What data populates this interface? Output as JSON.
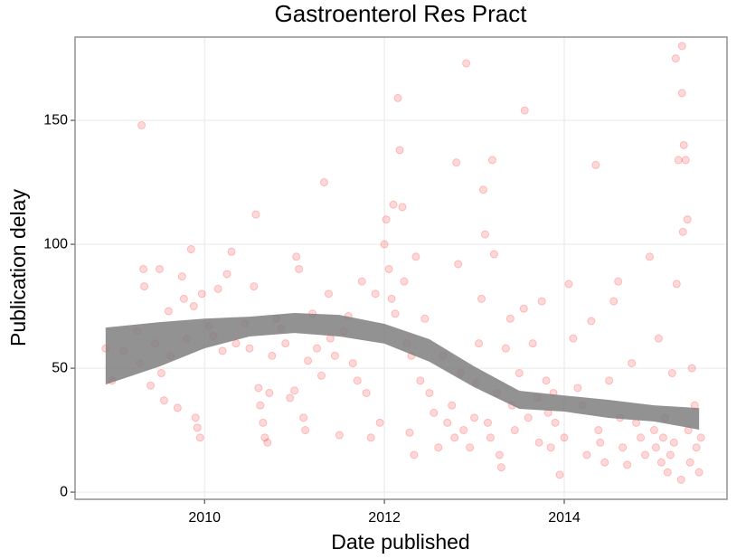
{
  "chart_data": {
    "type": "scatter",
    "title": "Gastroenterol Res Pract",
    "x_label": "Date published",
    "y_label": "Publication delay",
    "xlim": [
      2008.56,
      2015.81
    ],
    "ylim": [
      -2.9,
      183.6
    ],
    "xticks": [
      2010,
      2012,
      2014
    ],
    "yticks": [
      0,
      50,
      100,
      150
    ],
    "grid": true,
    "point_color": "#ff0000",
    "smooth_color": "#7f7f7f",
    "points": {
      "x": [
        2008.9,
        2008.97,
        2009.1,
        2009.25,
        2009.28,
        2009.3,
        2009.32,
        2009.33,
        2009.4,
        2009.45,
        2009.5,
        2009.52,
        2009.55,
        2009.6,
        2009.62,
        2009.7,
        2009.75,
        2009.77,
        2009.8,
        2009.85,
        2009.88,
        2009.9,
        2009.92,
        2009.95,
        2009.97,
        2010.05,
        2010.1,
        2010.15,
        2010.2,
        2010.25,
        2010.3,
        2010.35,
        2010.45,
        2010.5,
        2010.55,
        2010.57,
        2010.6,
        2010.62,
        2010.65,
        2010.67,
        2010.7,
        2010.72,
        2010.75,
        2010.8,
        2010.85,
        2010.9,
        2010.95,
        2011.0,
        2011.02,
        2011.05,
        2011.1,
        2011.12,
        2011.15,
        2011.2,
        2011.25,
        2011.3,
        2011.33,
        2011.38,
        2011.4,
        2011.45,
        2011.5,
        2011.55,
        2011.6,
        2011.65,
        2011.7,
        2011.75,
        2011.8,
        2011.85,
        2011.9,
        2011.95,
        2012.0,
        2012.02,
        2012.05,
        2012.08,
        2012.1,
        2012.12,
        2012.15,
        2012.17,
        2012.2,
        2012.22,
        2012.25,
        2012.28,
        2012.3,
        2012.33,
        2012.35,
        2012.4,
        2012.45,
        2012.5,
        2012.55,
        2012.6,
        2012.65,
        2012.7,
        2012.75,
        2012.78,
        2012.8,
        2012.82,
        2012.85,
        2012.88,
        2012.91,
        2012.95,
        2013.0,
        2013.02,
        2013.05,
        2013.08,
        2013.1,
        2013.12,
        2013.15,
        2013.18,
        2013.2,
        2013.22,
        2013.25,
        2013.28,
        2013.3,
        2013.35,
        2013.4,
        2013.42,
        2013.45,
        2013.5,
        2013.55,
        2013.56,
        2013.6,
        2013.65,
        2013.7,
        2013.72,
        2013.75,
        2013.8,
        2013.82,
        2013.85,
        2013.88,
        2013.9,
        2013.95,
        2014.0,
        2014.05,
        2014.1,
        2014.15,
        2014.2,
        2014.25,
        2014.3,
        2014.35,
        2014.38,
        2014.4,
        2014.45,
        2014.5,
        2014.55,
        2014.6,
        2014.62,
        2014.65,
        2014.7,
        2014.75,
        2014.8,
        2014.85,
        2014.9,
        2014.95,
        2015.0,
        2015.02,
        2015.05,
        2015.08,
        2015.1,
        2015.12,
        2015.15,
        2015.18,
        2015.2,
        2015.22,
        2015.24,
        2015.25,
        2015.27,
        2015.3,
        2015.31,
        2015.31,
        2015.32,
        2015.33,
        2015.35,
        2015.37,
        2015.38,
        2015.4,
        2015.42,
        2015.45,
        2015.47,
        2015.5,
        2015.52
      ],
      "y": [
        58,
        45,
        57,
        65,
        52,
        148,
        90,
        83,
        43,
        60,
        90,
        48,
        37,
        73,
        55,
        34,
        87,
        78,
        62,
        98,
        75,
        30,
        26,
        22,
        80,
        67,
        63,
        82,
        57,
        88,
        97,
        60,
        68,
        58,
        83,
        112,
        42,
        35,
        28,
        22,
        20,
        40,
        55,
        70,
        66,
        60,
        38,
        41,
        95,
        90,
        30,
        25,
        53,
        72,
        58,
        47,
        125,
        80,
        62,
        55,
        23,
        65,
        71,
        52,
        45,
        85,
        40,
        22,
        80,
        28,
        100,
        110,
        90,
        78,
        116,
        72,
        159,
        138,
        115,
        85,
        60,
        24,
        55,
        15,
        95,
        45,
        70,
        40,
        32,
        18,
        55,
        28,
        35,
        22,
        133,
        92,
        48,
        25,
        173,
        18,
        30,
        44,
        60,
        78,
        122,
        104,
        28,
        22,
        134,
        96,
        40,
        15,
        10,
        58,
        70,
        35,
        25,
        48,
        74,
        154,
        30,
        60,
        38,
        20,
        77,
        45,
        32,
        18,
        40,
        28,
        7,
        22,
        84,
        62,
        42,
        35,
        15,
        69,
        132,
        25,
        20,
        12,
        45,
        77,
        85,
        30,
        18,
        11,
        52,
        28,
        22,
        15,
        95,
        25,
        18,
        62,
        12,
        22,
        30,
        8,
        15,
        48,
        20,
        175,
        84,
        134,
        5,
        161,
        180,
        105,
        140,
        134,
        110,
        25,
        12,
        50,
        35,
        18,
        8,
        22
      ]
    },
    "smooth": {
      "x": [
        2008.9,
        2009.5,
        2010,
        2010.5,
        2011,
        2011.5,
        2012,
        2012.5,
        2013,
        2013.5,
        2014,
        2014.5,
        2015,
        2015.5
      ],
      "lower": [
        43.4,
        50.7,
        58,
        62.8,
        64.2,
        62.8,
        59.9,
        52.6,
        42.3,
        33.6,
        32.5,
        29.9,
        28.5,
        25.2
      ],
      "upper": [
        66.4,
        68.6,
        70,
        70.8,
        72.3,
        71.5,
        67.9,
        61.7,
        50.7,
        40.9,
        39,
        37.2,
        35,
        33.9
      ]
    }
  }
}
